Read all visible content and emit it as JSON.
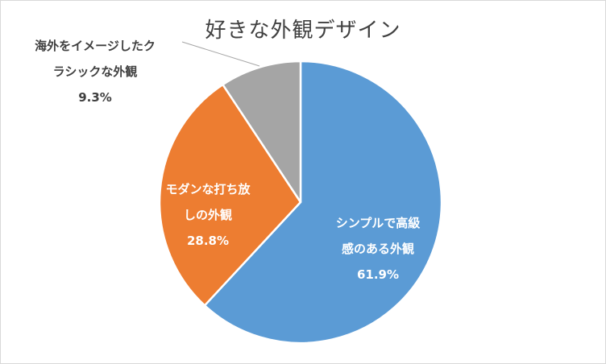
{
  "chart_data": {
    "type": "pie",
    "title": "好きな外観デザイン",
    "slices": [
      {
        "label_lines": [
          "シンプルで高級",
          "感のある外観"
        ],
        "value": 61.9,
        "value_label": "61.9%",
        "color": "#5b9bd5",
        "label_color": "#ffffff"
      },
      {
        "label_lines": [
          "モダンな打ち放",
          "しの外観"
        ],
        "value": 28.8,
        "value_label": "28.8%",
        "color": "#ed7d31",
        "label_color": "#ffffff"
      },
      {
        "label_lines": [
          "海外をイメージしたク",
          "ラシックな外観"
        ],
        "value": 9.3,
        "value_label": "9.3%",
        "color": "#a5a5a5",
        "label_color": "#404040"
      }
    ],
    "start": "12 o'clock",
    "direction": "clockwise",
    "legend": "none"
  }
}
